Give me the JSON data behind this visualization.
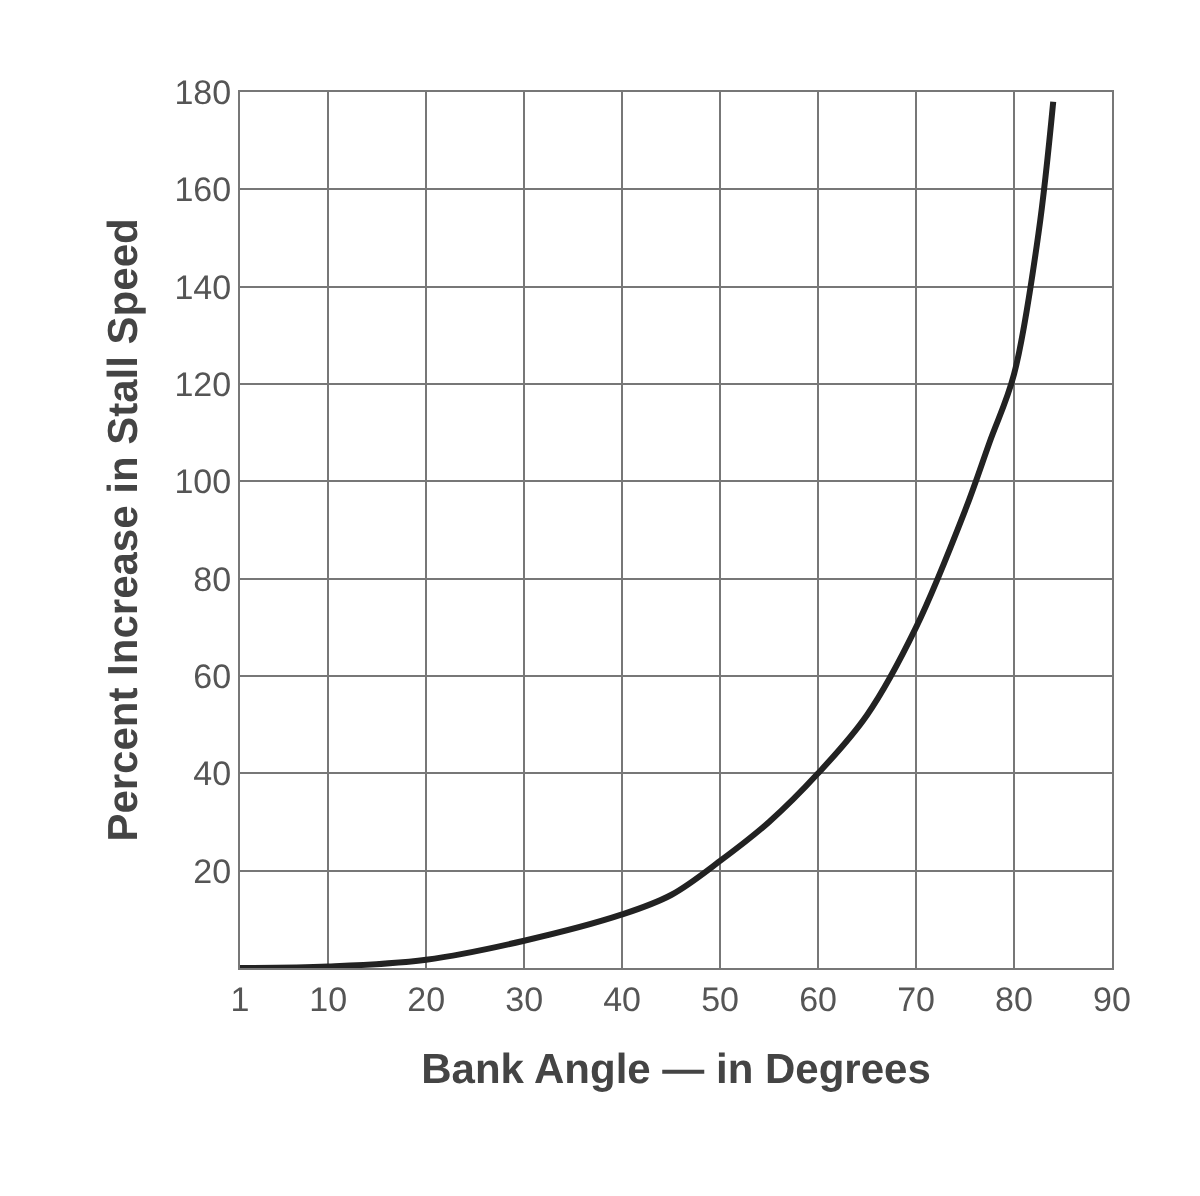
{
  "chart_data": {
    "type": "line",
    "xlabel": "Bank Angle — in Degrees",
    "ylabel": "Percent Increase in Stall Speed",
    "x": [
      1,
      10,
      20,
      30,
      40,
      45,
      50,
      55,
      60,
      65,
      70,
      75,
      77.5,
      80,
      82.5,
      84
    ],
    "series": [
      {
        "color": "#222222",
        "values": [
          0,
          0.3,
          1.7,
          5.6,
          11,
          15,
          22,
          30,
          40,
          52,
          70,
          94,
          108,
          122,
          151,
          178
        ]
      }
    ],
    "xlim": [
      1,
      90
    ],
    "xticks": [
      1,
      10,
      20,
      30,
      40,
      50,
      60,
      70,
      80,
      90
    ],
    "ylim": [
      0,
      180
    ],
    "yticks": [
      {
        "value": 0,
        "label": null
      },
      20,
      40,
      60,
      80,
      100,
      120,
      140,
      160,
      180
    ],
    "grid": true,
    "legend": false,
    "marker": "none",
    "line_style": "solid"
  }
}
